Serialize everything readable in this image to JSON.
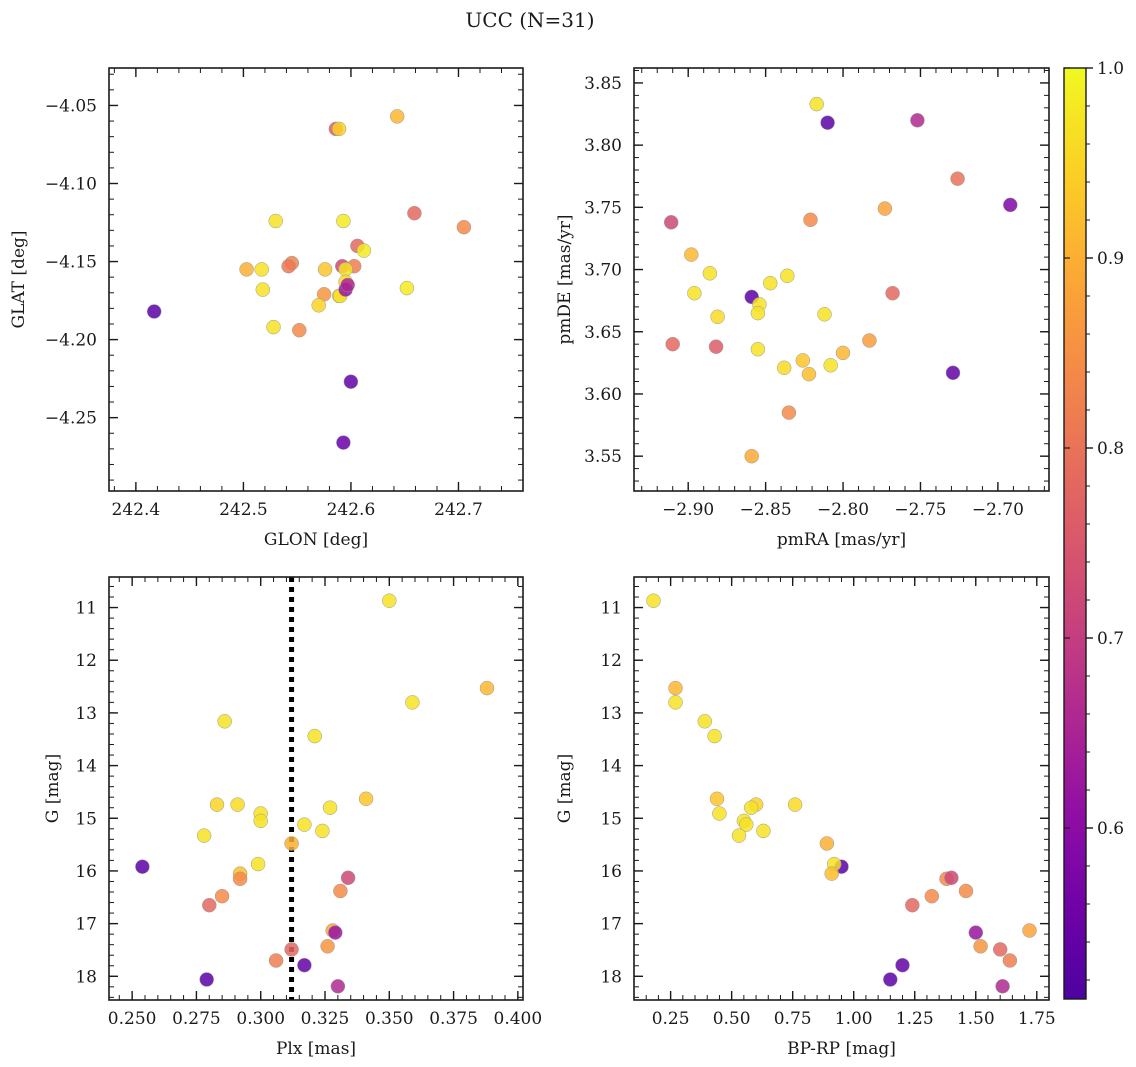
{
  "figure": {
    "title": "UCC (N=31)"
  },
  "colorbar": {
    "colormap": "plasma",
    "range": [
      0.51,
      1.0
    ],
    "ticks": [
      0.6,
      0.7,
      0.8,
      0.9,
      1.0
    ],
    "tick_labels": [
      "0.6",
      "0.7",
      "0.8",
      "0.9",
      "1.0"
    ]
  },
  "chart_data": [
    {
      "type": "scatter",
      "name": "glon-glat",
      "xlabel": "GLON [deg]",
      "ylabel": "GLAT [deg]",
      "xlim": [
        242.375,
        242.76
      ],
      "ylim": [
        -4.297,
        -4.026
      ],
      "y_inverted": false,
      "xticks": [
        242.4,
        242.5,
        242.6,
        242.7
      ],
      "xtick_labels": [
        "242.4",
        "242.5",
        "242.6",
        "242.7"
      ],
      "yticks": [
        -4.05,
        -4.1,
        -4.15,
        -4.2,
        -4.25
      ],
      "ytick_labels": [
        "−4.05",
        "−4.10",
        "−4.15",
        "−4.20",
        "−4.25"
      ],
      "x": [
        242.586,
        242.589,
        242.643,
        242.53,
        242.593,
        242.659,
        242.705,
        242.606,
        242.612,
        242.545,
        242.542,
        242.503,
        242.517,
        242.576,
        242.592,
        242.603,
        242.595,
        242.595,
        242.589,
        242.59,
        242.595,
        242.575,
        242.57,
        242.652,
        242.518,
        242.528,
        242.552,
        242.417,
        242.6,
        242.593,
        242.597
      ],
      "y": [
        -4.065,
        -4.065,
        -4.057,
        -4.124,
        -4.124,
        -4.119,
        -4.128,
        -4.14,
        -4.143,
        -4.151,
        -4.153,
        -4.155,
        -4.155,
        -4.155,
        -4.153,
        -4.153,
        -4.155,
        -4.163,
        -4.172,
        -4.172,
        -4.168,
        -4.171,
        -4.178,
        -4.167,
        -4.168,
        -4.192,
        -4.194,
        -4.182,
        -4.227,
        -4.266,
        -4.165
      ],
      "c": [
        0.76,
        0.95,
        0.91,
        0.97,
        0.98,
        0.78,
        0.84,
        0.78,
        0.98,
        0.83,
        0.81,
        0.9,
        0.97,
        0.93,
        0.72,
        0.82,
        0.97,
        0.96,
        0.96,
        0.97,
        0.62,
        0.86,
        0.95,
        0.98,
        0.97,
        0.97,
        0.84,
        0.53,
        0.54,
        0.55,
        0.65
      ]
    },
    {
      "type": "scatter",
      "name": "pmra-pmde",
      "xlabel": "pmRA [mas/yr]",
      "ylabel": "pmDE [mas/yr]",
      "xlim": [
        -2.935,
        -2.667
      ],
      "ylim": [
        3.522,
        3.862
      ],
      "y_inverted": false,
      "xticks": [
        -2.9,
        -2.85,
        -2.8,
        -2.75,
        -2.7
      ],
      "xtick_labels": [
        "−2.90",
        "−2.85",
        "−2.80",
        "−2.75",
        "−2.70"
      ],
      "yticks": [
        3.55,
        3.6,
        3.65,
        3.7,
        3.75,
        3.8,
        3.85
      ],
      "ytick_labels": [
        "3.55",
        "3.60",
        "3.65",
        "3.70",
        "3.75",
        "3.80",
        "3.85"
      ],
      "x": [
        -2.817,
        -2.81,
        -2.752,
        -2.726,
        -2.692,
        -2.911,
        -2.821,
        -2.773,
        -2.898,
        -2.886,
        -2.896,
        -2.847,
        -2.836,
        -2.859,
        -2.854,
        -2.768,
        -2.855,
        -2.812,
        -2.91,
        -2.881,
        -2.882,
        -2.855,
        -2.8,
        -2.783,
        -2.826,
        -2.808,
        -2.838,
        -2.822,
        -2.729,
        -2.835,
        -2.859
      ],
      "y": [
        3.833,
        3.818,
        3.82,
        3.773,
        3.752,
        3.738,
        3.74,
        3.749,
        3.712,
        3.697,
        3.681,
        3.689,
        3.695,
        3.678,
        3.672,
        3.681,
        3.665,
        3.664,
        3.64,
        3.662,
        3.638,
        3.636,
        3.633,
        3.643,
        3.627,
        3.623,
        3.621,
        3.616,
        3.617,
        3.585,
        3.55
      ],
      "c": [
        0.97,
        0.53,
        0.66,
        0.8,
        0.58,
        0.72,
        0.84,
        0.88,
        0.91,
        0.97,
        0.97,
        0.97,
        0.97,
        0.53,
        0.97,
        0.78,
        0.97,
        0.97,
        0.78,
        0.96,
        0.76,
        0.97,
        0.91,
        0.87,
        0.93,
        0.97,
        0.96,
        0.92,
        0.54,
        0.84,
        0.89
      ]
    },
    {
      "type": "scatter",
      "name": "plx-g",
      "xlabel": "Plx [mas]",
      "ylabel": "G [mag]",
      "xlim": [
        0.241,
        0.402
      ],
      "ylim": [
        18.45,
        10.42
      ],
      "y_inverted": true,
      "vline": 0.312,
      "xticks": [
        0.25,
        0.275,
        0.3,
        0.325,
        0.35,
        0.375,
        0.4
      ],
      "xtick_labels": [
        "0.250",
        "0.275",
        "0.300",
        "0.325",
        "0.350",
        "0.375",
        "0.400"
      ],
      "yticks": [
        11,
        12,
        13,
        14,
        15,
        16,
        17,
        18
      ],
      "ytick_labels": [
        "11",
        "12",
        "13",
        "14",
        "15",
        "16",
        "17",
        "18"
      ],
      "x": [
        0.35,
        0.388,
        0.359,
        0.286,
        0.321,
        0.341,
        0.283,
        0.291,
        0.327,
        0.3,
        0.3,
        0.317,
        0.324,
        0.278,
        0.312,
        0.299,
        0.292,
        0.254,
        0.292,
        0.334,
        0.331,
        0.285,
        0.28,
        0.328,
        0.329,
        0.326,
        0.312,
        0.306,
        0.317,
        0.279,
        0.33
      ],
      "y": [
        10.87,
        12.53,
        12.8,
        13.16,
        13.44,
        14.63,
        14.74,
        14.74,
        14.8,
        14.91,
        15.05,
        15.12,
        15.24,
        15.33,
        15.48,
        15.87,
        16.05,
        15.92,
        16.15,
        16.13,
        16.38,
        16.48,
        16.65,
        17.13,
        17.17,
        17.43,
        17.49,
        17.7,
        17.79,
        18.06,
        18.19
      ],
      "c": [
        0.97,
        0.91,
        0.97,
        0.97,
        0.97,
        0.93,
        0.95,
        0.96,
        0.97,
        0.97,
        0.97,
        0.97,
        0.97,
        0.97,
        0.9,
        0.97,
        0.92,
        0.53,
        0.84,
        0.72,
        0.84,
        0.84,
        0.78,
        0.88,
        0.62,
        0.86,
        0.78,
        0.82,
        0.54,
        0.53,
        0.66
      ]
    },
    {
      "type": "scatter",
      "name": "bprp-g",
      "xlabel": "BP-RP [mag]",
      "ylabel": "G [mag]",
      "xlim": [
        0.1,
        1.8
      ],
      "ylim": [
        18.45,
        10.42
      ],
      "y_inverted": true,
      "xticks": [
        0.25,
        0.5,
        0.75,
        1.0,
        1.25,
        1.5,
        1.75
      ],
      "xtick_labels": [
        "0.25",
        "0.50",
        "0.75",
        "1.00",
        "1.25",
        "1.50",
        "1.75"
      ],
      "yticks": [
        11,
        12,
        13,
        14,
        15,
        16,
        17,
        18
      ],
      "ytick_labels": [
        "11",
        "12",
        "13",
        "14",
        "15",
        "16",
        "17",
        "18"
      ],
      "x": [
        0.18,
        0.27,
        0.27,
        0.39,
        0.43,
        0.44,
        0.6,
        0.76,
        0.58,
        0.45,
        0.55,
        0.56,
        0.63,
        0.53,
        0.89,
        0.95,
        0.92,
        0.91,
        1.38,
        1.4,
        1.46,
        1.32,
        1.24,
        1.72,
        1.5,
        1.52,
        1.6,
        1.64,
        1.2,
        1.15,
        1.61
      ],
      "y": [
        10.87,
        12.53,
        12.8,
        13.16,
        13.44,
        14.63,
        14.74,
        14.74,
        14.8,
        14.91,
        15.05,
        15.12,
        15.24,
        15.33,
        15.48,
        15.92,
        15.87,
        16.05,
        16.15,
        16.13,
        16.38,
        16.48,
        16.65,
        17.13,
        17.17,
        17.43,
        17.49,
        17.7,
        17.79,
        18.06,
        18.19
      ],
      "c": [
        0.97,
        0.91,
        0.97,
        0.97,
        0.97,
        0.93,
        0.95,
        0.96,
        0.97,
        0.97,
        0.97,
        0.97,
        0.97,
        0.97,
        0.9,
        0.53,
        0.97,
        0.92,
        0.84,
        0.72,
        0.84,
        0.84,
        0.78,
        0.88,
        0.62,
        0.86,
        0.78,
        0.82,
        0.54,
        0.53,
        0.66
      ]
    }
  ]
}
